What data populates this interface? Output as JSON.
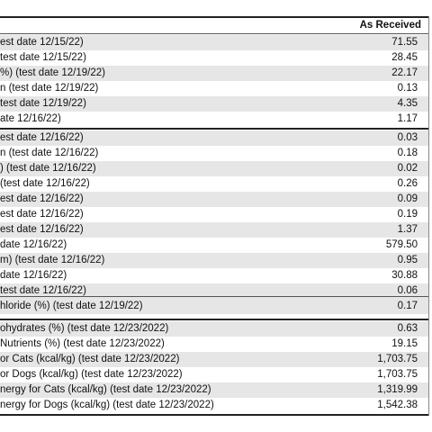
{
  "header": {
    "column_label": "As Received"
  },
  "sections": [
    {
      "rows": [
        {
          "label": "est date 12/15/22)",
          "value": "71.55"
        },
        {
          "label": "test date 12/15/22)",
          "value": "28.45"
        },
        {
          "label": "%) (test date 12/19/22)",
          "value": "22.17"
        },
        {
          "label": "n (test date 12/19/22)",
          "value": "0.13"
        },
        {
          "label": "test date 12/19/22)",
          "value": "4.35"
        },
        {
          "label": "ate 12/16/22)",
          "value": "1.17"
        }
      ]
    },
    {
      "rows": [
        {
          "label": "est date 12/16/22)",
          "value": "0.03"
        },
        {
          "label": "n (test date 12/16/22)",
          "value": "0.18"
        },
        {
          "label": ") (test date 12/16/22)",
          "value": "0.02"
        },
        {
          "label": "(test date 12/16/22)",
          "value": "0.26"
        },
        {
          "label": "est date 12/16/22)",
          "value": "0.09"
        },
        {
          "label": "est date 12/16/22)",
          "value": "0.19"
        },
        {
          "label": "est date 12/16/22)",
          "value": "1.37"
        },
        {
          "label": " date 12/16/22)",
          "value": "579.50"
        },
        {
          "label": "m) (test date 12/16/22)",
          "value": "0.95"
        },
        {
          "label": " date 12/16/22)",
          "value": "30.88"
        },
        {
          "label": "test date 12/16/22)",
          "value": "0.06"
        }
      ]
    },
    {
      "rows": [
        {
          "label": "hloride (%) (test date 12/19/22)",
          "value": "0.17"
        }
      ]
    },
    {
      "rows": [
        {
          "label": "ohydrates (%) (test date 12/23/2022)",
          "value": "0.63"
        },
        {
          "label": " Nutrients (%) (test date 12/23/2022)",
          "value": "19.15"
        },
        {
          "label": "or Cats (kcal/kg) (test date 12/23/2022)",
          "value": "1,703.75"
        },
        {
          "label": "or Dogs (kcal/kg) (test date 12/23/2022)",
          "value": "1,703.75"
        },
        {
          "label": "nergy for Cats (kcal/kg) (test date 12/23/2022)",
          "value": "1,319.99"
        },
        {
          "label": "nergy for Dogs (kcal/kg) (test date 12/23/2022)",
          "value": "1,542.38"
        }
      ]
    }
  ]
}
